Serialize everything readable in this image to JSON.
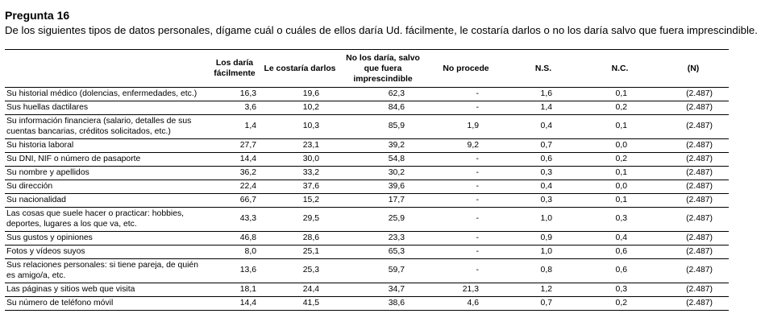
{
  "title": "Pregunta 16",
  "subtitle": "De los siguientes tipos de datos personales, dígame cuál o cuáles de ellos daría Ud. fácilmente, le costaría darlos o no los daría salvo que fuera imprescindible.",
  "table": {
    "headers": {
      "label": "",
      "a": "Los daría fácilmente",
      "b": "Le costaría darlos",
      "c": "No los daría, salvo que fuera imprescindible",
      "d": "No procede",
      "e": "N.S.",
      "f": "N.C.",
      "n": "(N)"
    },
    "rows": [
      {
        "label": "Su historial médico (dolencias, enfermedades, etc.)",
        "a": "16,3",
        "b": "19,6",
        "c": "62,3",
        "d": "-",
        "e": "1,6",
        "f": "0,1",
        "n": "(2.487)"
      },
      {
        "label": "Sus huellas dactilares",
        "a": "3,6",
        "b": "10,2",
        "c": "84,6",
        "d": "-",
        "e": "1,4",
        "f": "0,2",
        "n": "(2.487)"
      },
      {
        "label": "Su información financiera (salario, detalles de sus cuentas bancarias, créditos solicitados, etc.)",
        "a": "1,4",
        "b": "10,3",
        "c": "85,9",
        "d": "1,9",
        "e": "0,4",
        "f": "0,1",
        "n": "(2.487)"
      },
      {
        "label": "Su historia laboral",
        "a": "27,7",
        "b": "23,1",
        "c": "39,2",
        "d": "9,2",
        "e": "0,7",
        "f": "0,0",
        "n": "(2.487)"
      },
      {
        "label": "Su DNI, NIF o número de pasaporte",
        "a": "14,4",
        "b": "30,0",
        "c": "54,8",
        "d": "-",
        "e": "0,6",
        "f": "0,2",
        "n": "(2.487)"
      },
      {
        "label": "Su nombre y apellidos",
        "a": "36,2",
        "b": "33,2",
        "c": "30,2",
        "d": "-",
        "e": "0,3",
        "f": "0,1",
        "n": "(2.487)"
      },
      {
        "label": "Su dirección",
        "a": "22,4",
        "b": "37,6",
        "c": "39,6",
        "d": "-",
        "e": "0,4",
        "f": "0,0",
        "n": "(2.487)"
      },
      {
        "label": "Su nacionalidad",
        "a": "66,7",
        "b": "15,2",
        "c": "17,7",
        "d": "-",
        "e": "0,3",
        "f": "0,1",
        "n": "(2.487)"
      },
      {
        "label": "Las cosas que suele hacer o practicar: hobbies, deportes, lugares a los que va, etc.",
        "a": "43,3",
        "b": "29,5",
        "c": "25,9",
        "d": "-",
        "e": "1,0",
        "f": "0,3",
        "n": "(2.487)"
      },
      {
        "label": "Sus gustos y opiniones",
        "a": "46,8",
        "b": "28,6",
        "c": "23,3",
        "d": "-",
        "e": "0,9",
        "f": "0,4",
        "n": "(2.487)"
      },
      {
        "label": "Fotos y vídeos suyos",
        "a": "8,0",
        "b": "25,1",
        "c": "65,3",
        "d": "-",
        "e": "1,0",
        "f": "0,6",
        "n": "(2.487)"
      },
      {
        "label": "Sus relaciones personales: si tiene pareja, de quién es amigo/a, etc.",
        "a": "13,6",
        "b": "25,3",
        "c": "59,7",
        "d": "-",
        "e": "0,8",
        "f": "0,6",
        "n": "(2.487)"
      },
      {
        "label": "Las páginas y sitios web que visita",
        "a": "18,1",
        "b": "24,4",
        "c": "34,7",
        "d": "21,3",
        "e": "1,2",
        "f": "0,3",
        "n": "(2.487)"
      },
      {
        "label": "Su número de teléfono móvil",
        "a": "14,4",
        "b": "41,5",
        "c": "38,6",
        "d": "4,6",
        "e": "0,7",
        "f": "0,2",
        "n": "(2.487)"
      }
    ]
  }
}
